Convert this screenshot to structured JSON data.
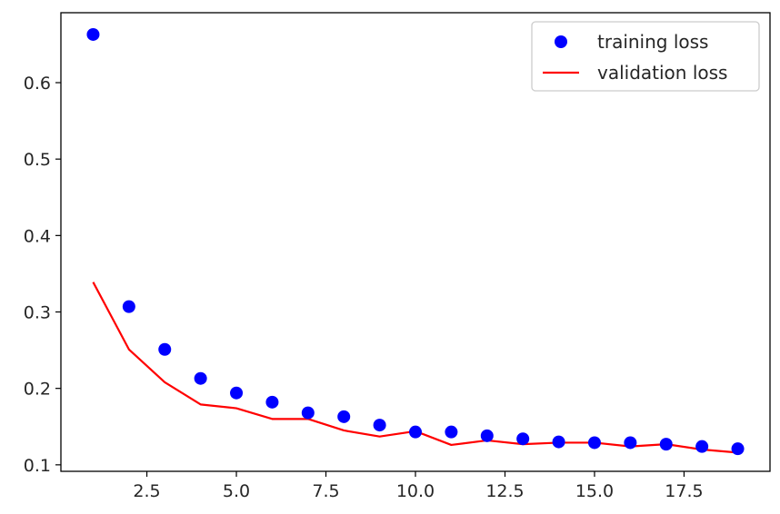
{
  "chart_data": {
    "type": "line",
    "title": "",
    "xlabel": "",
    "ylabel": "",
    "xlim": [
      0.1,
      19.9
    ],
    "ylim": [
      0.0915,
      0.6915
    ],
    "xticks": [
      {
        "value": 2.5,
        "label": "2.5"
      },
      {
        "value": 5.0,
        "label": "5.0"
      },
      {
        "value": 7.5,
        "label": "7.5"
      },
      {
        "value": 10.0,
        "label": "10.0"
      },
      {
        "value": 12.5,
        "label": "12.5"
      },
      {
        "value": 15.0,
        "label": "15.0"
      },
      {
        "value": 17.5,
        "label": "17.5"
      }
    ],
    "yticks": [
      {
        "value": 0.1,
        "label": "0.1"
      },
      {
        "value": 0.2,
        "label": "0.2"
      },
      {
        "value": 0.3,
        "label": "0.3"
      },
      {
        "value": 0.4,
        "label": "0.4"
      },
      {
        "value": 0.5,
        "label": "0.5"
      },
      {
        "value": 0.6,
        "label": "0.6"
      }
    ],
    "grid": false,
    "legend_position": "top-right",
    "x": [
      1,
      2,
      3,
      4,
      5,
      6,
      7,
      8,
      9,
      10,
      11,
      12,
      13,
      14,
      15,
      16,
      17,
      18,
      19
    ],
    "series": [
      {
        "name": "training loss",
        "kind": "scatter",
        "color": "#0000ff",
        "values": [
          0.663,
          0.307,
          0.251,
          0.213,
          0.194,
          0.182,
          0.168,
          0.163,
          0.152,
          0.143,
          0.143,
          0.138,
          0.134,
          0.13,
          0.129,
          0.129,
          0.127,
          0.124,
          0.121
        ]
      },
      {
        "name": "validation loss",
        "kind": "line",
        "color": "#ff0000",
        "values": [
          0.339,
          0.251,
          0.208,
          0.179,
          0.174,
          0.16,
          0.16,
          0.145,
          0.137,
          0.144,
          0.126,
          0.132,
          0.127,
          0.129,
          0.129,
          0.124,
          0.127,
          0.12,
          0.116
        ]
      }
    ]
  }
}
